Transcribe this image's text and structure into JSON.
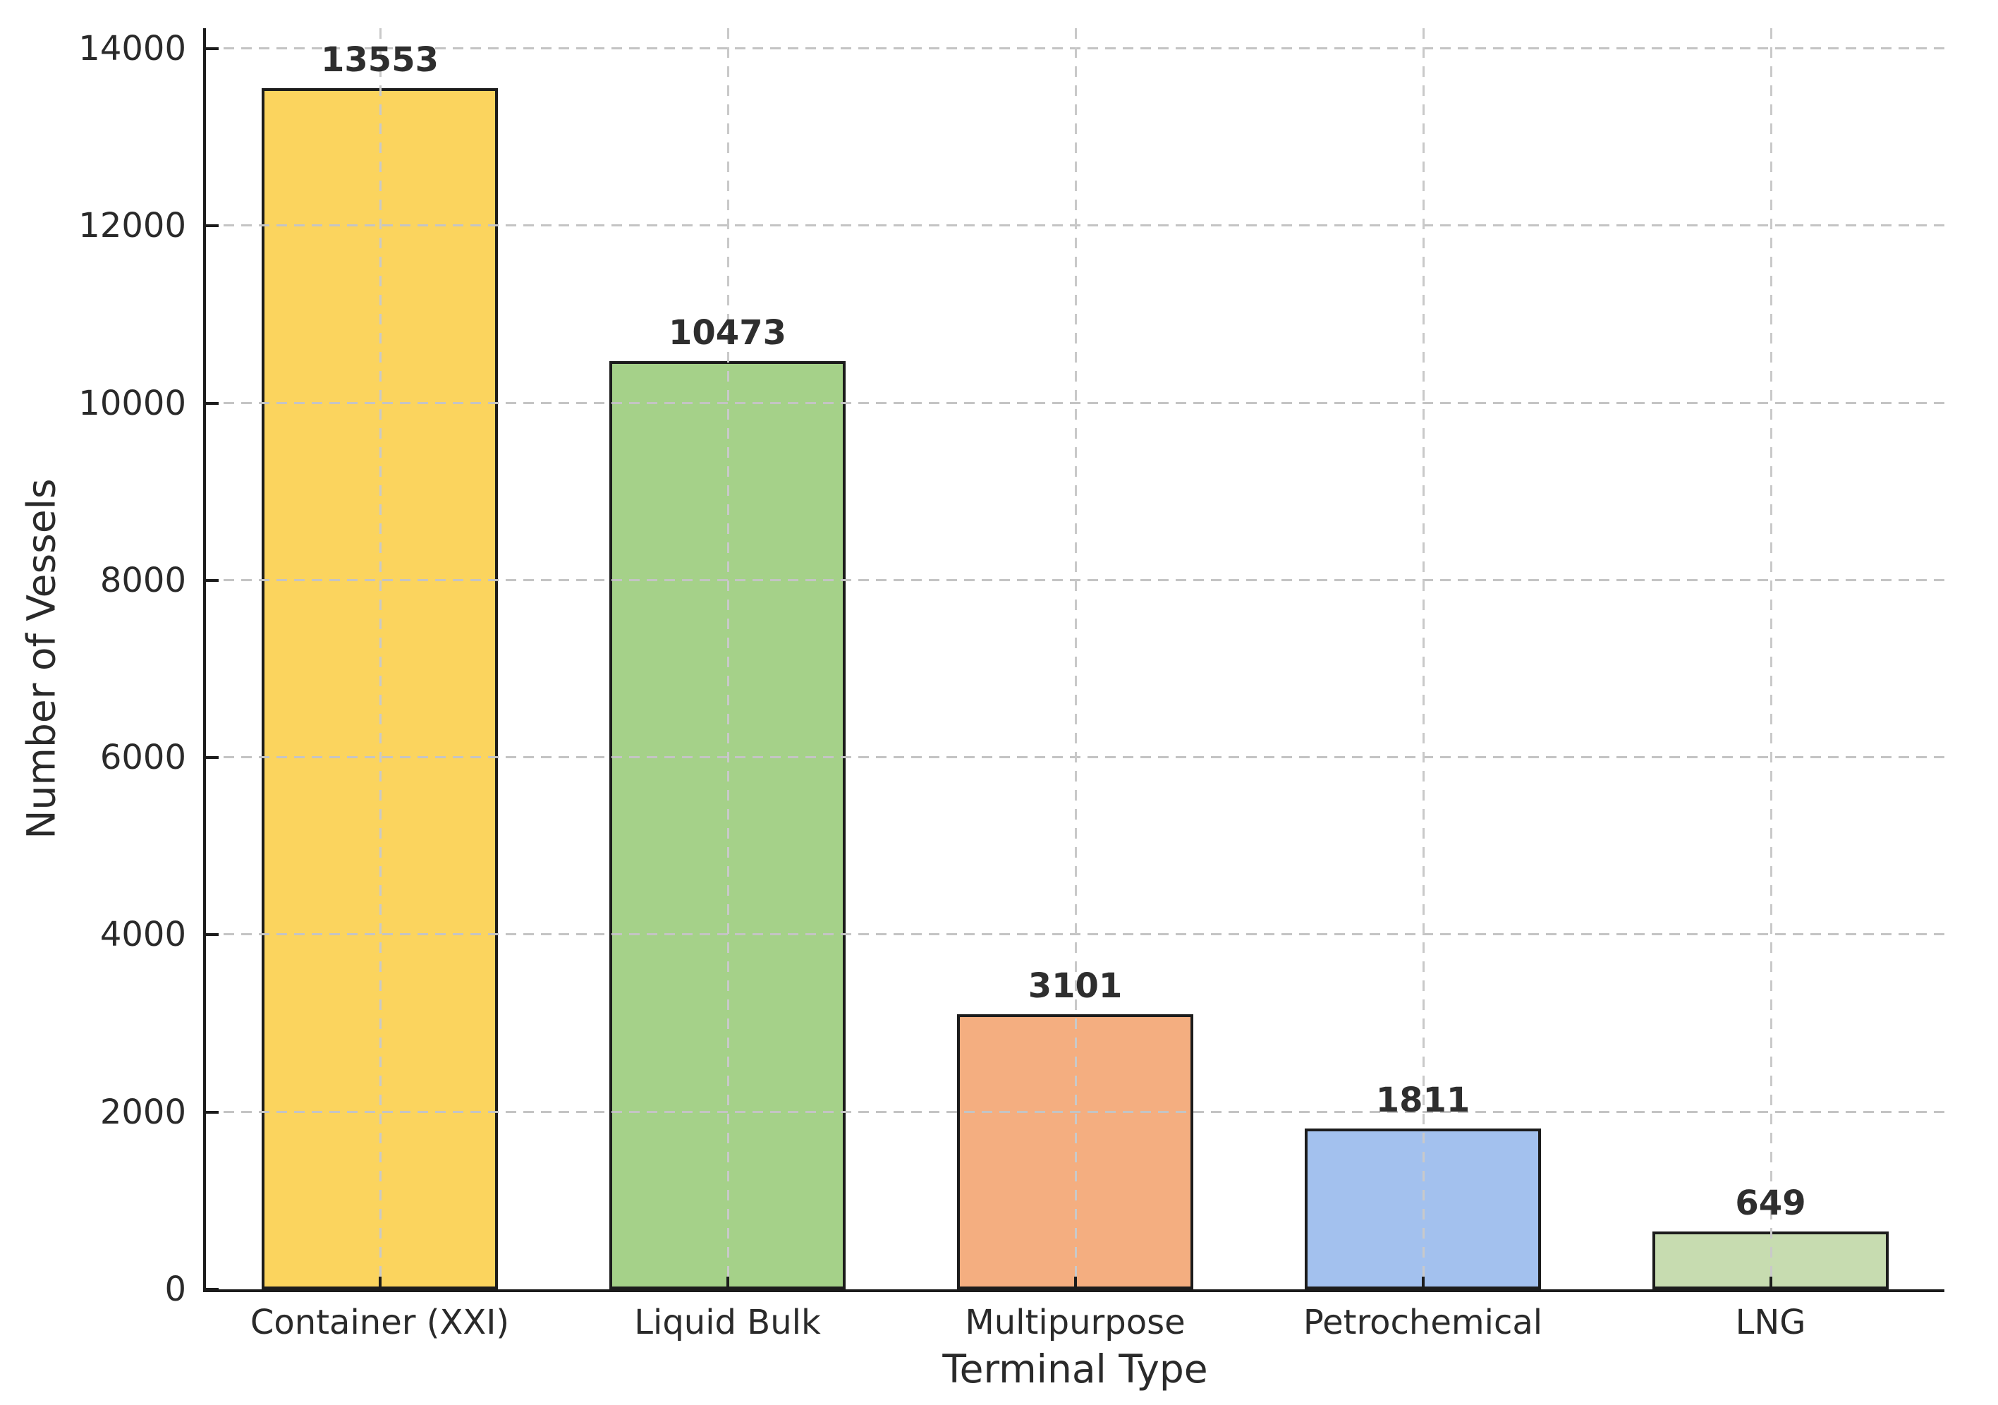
{
  "chart_data": {
    "type": "bar",
    "categories": [
      "Container (XXI)",
      "Liquid Bulk",
      "Multipurpose",
      "Petrochemical",
      "LNG"
    ],
    "values": [
      13553,
      10473,
      3101,
      1811,
      649
    ],
    "bar_labels": [
      "13553",
      "10473",
      "3101",
      "1811",
      "649"
    ],
    "bar_colors": [
      "#fbd45e",
      "#a5d189",
      "#f4ae80",
      "#a3c1ee",
      "#c7dcb0"
    ],
    "bar_edge_color": "#1c1c1c",
    "title": "",
    "xlabel": "Terminal Type",
    "ylabel": "Number of Vessels",
    "ylim": [
      0,
      14230
    ],
    "yticks": [
      0,
      2000,
      4000,
      6000,
      8000,
      10000,
      12000,
      14000
    ],
    "grid": "horizontal and vertical dashed gridlines, drawn above bars",
    "legend": "none",
    "grid_color": "#c4c4c4",
    "background_color": "#ffffff",
    "text_color": "#2a2a2a"
  }
}
